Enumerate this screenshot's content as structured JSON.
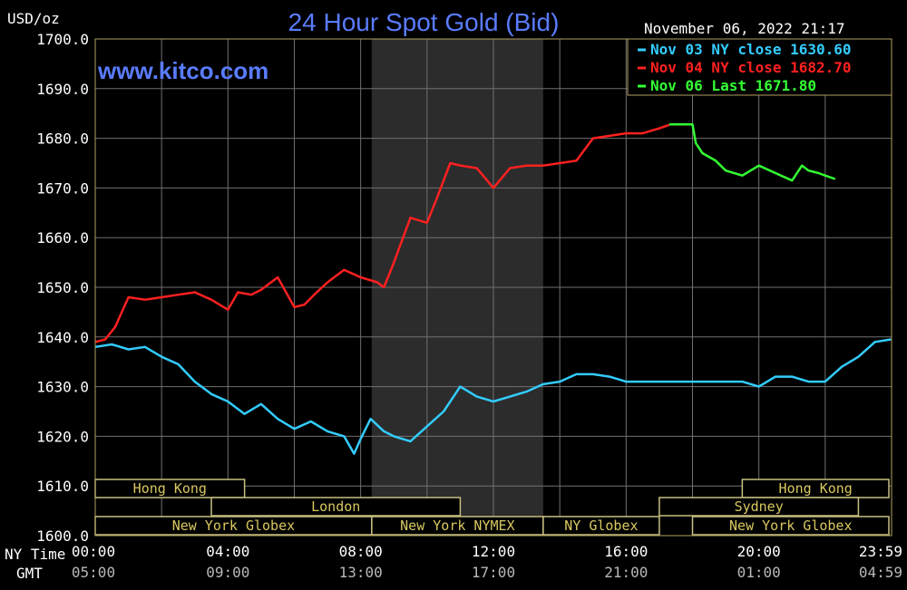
{
  "chart_data": {
    "type": "line",
    "title": "24 Hour Spot Gold (Bid)",
    "watermark": "www.kitco.com",
    "timestamp": "November 06, 2022 21:17",
    "ylabel": "USD/oz",
    "ylim": [
      1600,
      1700
    ],
    "y_ticks": [
      "1600.0",
      "1610.0",
      "1620.0",
      "1630.0",
      "1640.0",
      "1650.0",
      "1660.0",
      "1670.0",
      "1680.0",
      "1690.0",
      "1700.0"
    ],
    "y_tick_values": [
      1600,
      1610,
      1620,
      1630,
      1640,
      1650,
      1660,
      1670,
      1680,
      1690,
      1700
    ],
    "x_axis_label_ny": "NY Time",
    "x_axis_label_gmt": "GMT",
    "x_ticks_ny": [
      "00:00",
      "04:00",
      "08:00",
      "12:00",
      "16:00",
      "20:00",
      "23:59"
    ],
    "x_ticks_gmt": [
      "05:00",
      "09:00",
      "13:00",
      "17:00",
      "21:00",
      "01:00",
      "04:59"
    ],
    "x_tick_hours": [
      0,
      4,
      8,
      12,
      16,
      20,
      23.98
    ],
    "xlim": [
      0,
      24
    ],
    "grid": true,
    "legend_position": "top-right",
    "shaded_session": [
      8.333,
      13.5
    ],
    "sessions": [
      {
        "label": "Hong Kong",
        "start": 0,
        "end": 4.5,
        "row": 0
      },
      {
        "label": "Hong Kong",
        "start": 19.5,
        "end": 24,
        "row": 0
      },
      {
        "label": "London",
        "start": 3.5,
        "end": 11.0,
        "row": 1
      },
      {
        "label": "Sydney",
        "start": 17.0,
        "end": 23.0,
        "row": 1
      },
      {
        "label": "New York Globex",
        "start": 0,
        "end": 8.333,
        "row": 2
      },
      {
        "label": "New York NYMEX",
        "start": 8.333,
        "end": 13.5,
        "row": 2
      },
      {
        "label": "NY Globex",
        "start": 13.5,
        "end": 17.0,
        "row": 2
      },
      {
        "label": "New York Globex",
        "start": 18.0,
        "end": 24,
        "row": 2
      }
    ],
    "series": [
      {
        "name": "Nov 03 NY close 1630.60",
        "color": "#33ccff",
        "x": [
          0,
          0.5,
          1.0,
          1.5,
          2.0,
          2.5,
          3.0,
          3.5,
          4.0,
          4.5,
          5.0,
          5.5,
          6.0,
          6.5,
          7.0,
          7.5,
          7.8,
          8.0,
          8.3,
          8.7,
          9.0,
          9.5,
          10.0,
          10.5,
          11.0,
          11.5,
          12.0,
          12.5,
          13.0,
          13.5,
          14.0,
          14.5,
          15.0,
          15.5,
          16.0,
          16.5,
          17.0,
          17.5,
          18.0,
          18.5,
          19.0,
          19.5,
          20.0,
          20.5,
          21.0,
          21.5,
          22.0,
          22.5,
          23.0,
          23.5,
          23.98
        ],
        "values": [
          1638,
          1638.5,
          1637.5,
          1638,
          1636,
          1634.5,
          1631,
          1628.5,
          1627,
          1624.5,
          1626.5,
          1623.5,
          1621.5,
          1623,
          1621,
          1620,
          1616.5,
          1619.5,
          1623.5,
          1621,
          1620,
          1619,
          1622,
          1625,
          1630,
          1628,
          1627,
          1628,
          1629,
          1630.5,
          1631,
          1632.5,
          1632.5,
          1632,
          1631,
          1631,
          1631,
          1631,
          1631,
          1631,
          1631,
          1631,
          1630,
          1632,
          1632,
          1631,
          1631,
          1634,
          1636,
          1639,
          1639.5
        ]
      },
      {
        "name": "Nov 04 NY close 1682.70",
        "color": "#ff2020",
        "x": [
          0,
          0.3,
          0.6,
          1.0,
          1.5,
          2.0,
          2.5,
          3.0,
          3.5,
          4.0,
          4.3,
          4.7,
          5.0,
          5.5,
          6.0,
          6.3,
          6.6,
          7.0,
          7.5,
          8.0,
          8.5,
          8.7,
          9.0,
          9.5,
          10.0,
          10.3,
          10.7,
          11.0,
          11.5,
          12.0,
          12.5,
          13.0,
          13.5,
          14.0,
          14.5,
          15.0,
          15.5,
          16.0,
          16.5,
          17.0,
          17.3
        ],
        "values": [
          1639,
          1639.5,
          1642,
          1648,
          1647.5,
          1648,
          1648.5,
          1649,
          1647.5,
          1645.5,
          1649,
          1648.5,
          1649.5,
          1652,
          1646,
          1646.5,
          1648.5,
          1651,
          1653.5,
          1652,
          1651,
          1650,
          1655,
          1664,
          1663,
          1668,
          1675,
          1674.5,
          1674,
          1670,
          1674,
          1674.5,
          1674.5,
          1675,
          1675.5,
          1680,
          1680.5,
          1681,
          1681,
          1682,
          1682.7
        ]
      },
      {
        "name": "Nov 06 Last 1671.80",
        "color": "#33ff33",
        "x": [
          17.3,
          18.0,
          18.1,
          18.3,
          18.7,
          19.0,
          19.5,
          20.0,
          20.5,
          21.0,
          21.3,
          21.5,
          21.8,
          22.0,
          22.3
        ],
        "values": [
          1682.8,
          1682.8,
          1679,
          1677,
          1675.5,
          1673.5,
          1672.5,
          1674.5,
          1673,
          1671.5,
          1674.5,
          1673.5,
          1673,
          1672.5,
          1671.8
        ]
      }
    ]
  }
}
